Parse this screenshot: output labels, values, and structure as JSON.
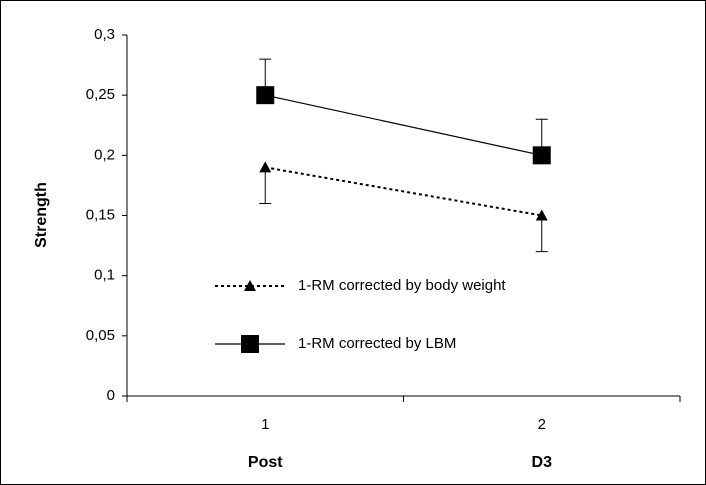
{
  "chart_data": {
    "type": "line",
    "y_label": "Strength",
    "categories": [
      "1",
      "2"
    ],
    "x_labels": [
      "Post",
      "D3"
    ],
    "ylim": [
      0,
      0.3
    ],
    "yticks": [
      0,
      {
        "value": 0.05,
        "label": "0,05"
      },
      {
        "value": 0.1,
        "label": "0,1"
      },
      {
        "value": 0.15,
        "label": "0,15"
      },
      {
        "value": 0.2,
        "label": "0,2"
      },
      {
        "value": 0.25,
        "label": "0,25"
      },
      {
        "value": 0.3,
        "label": "0,3"
      }
    ],
    "series": [
      {
        "name": "1-RM corrected by body weight",
        "color": "#000000",
        "marker": "triangle",
        "dash": true,
        "values": [
          0.19,
          0.15
        ],
        "errors": [
          0.03,
          0.03
        ],
        "error_direction": "down"
      },
      {
        "name": "1-RM corrected by LBM",
        "color": "#000000",
        "marker": "square",
        "dash": false,
        "values": [
          0.25,
          0.2
        ],
        "errors": [
          0.03,
          0.03
        ],
        "error_direction": "up"
      }
    ]
  }
}
